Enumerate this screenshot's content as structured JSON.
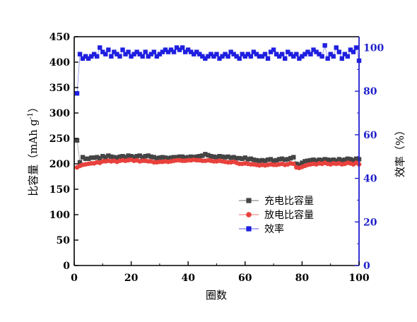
{
  "chart_data": {
    "type": "scatter",
    "xlabel": "圈数",
    "ylabel_left_main": "比容量（mAh g",
    "ylabel_left_sup": "-1",
    "ylabel_left_end": "）",
    "ylabel_right": "效率（%）",
    "xlim": [
      0,
      100
    ],
    "ylim_left": [
      0,
      450
    ],
    "ylim_right": [
      0,
      105
    ],
    "x_ticks": [
      0,
      20,
      40,
      60,
      80,
      100
    ],
    "y_ticks_left": [
      0,
      50,
      100,
      150,
      200,
      250,
      300,
      350,
      400,
      450
    ],
    "y_ticks_right": [
      0,
      20,
      40,
      60,
      80,
      100
    ],
    "right_axis_color": "#1f1fcc",
    "legend_position": "lower-right",
    "series": [
      {
        "name": "充电比容量",
        "axis": "left",
        "color": "#444444",
        "marker": "square",
        "x": [
          1,
          2,
          3,
          4,
          5,
          6,
          7,
          8,
          9,
          10,
          11,
          12,
          13,
          14,
          15,
          16,
          17,
          18,
          19,
          20,
          21,
          22,
          23,
          24,
          25,
          26,
          27,
          28,
          29,
          30,
          31,
          32,
          33,
          34,
          35,
          36,
          37,
          38,
          39,
          40,
          41,
          42,
          43,
          44,
          45,
          46,
          47,
          48,
          49,
          50,
          51,
          52,
          53,
          54,
          55,
          56,
          57,
          58,
          59,
          60,
          61,
          62,
          63,
          64,
          65,
          66,
          67,
          68,
          69,
          70,
          71,
          72,
          73,
          74,
          75,
          76,
          77,
          78,
          79,
          80,
          81,
          82,
          83,
          84,
          85,
          86,
          87,
          88,
          89,
          90,
          91,
          92,
          93,
          94,
          95,
          96,
          97,
          98,
          99,
          100
        ],
        "values": [
          246,
          203,
          213,
          210,
          210,
          212,
          212,
          213,
          211,
          215,
          213,
          216,
          214,
          213,
          212,
          214,
          215,
          213,
          216,
          215,
          213,
          215,
          216,
          213,
          215,
          216,
          214,
          213,
          211,
          212,
          213,
          212,
          211,
          212,
          213,
          213,
          214,
          214,
          212,
          213,
          214,
          213,
          214,
          215,
          216,
          219,
          217,
          215,
          214,
          213,
          215,
          214,
          213,
          214,
          212,
          213,
          211,
          211,
          210,
          212,
          209,
          210,
          208,
          207,
          206,
          207,
          206,
          208,
          209,
          206,
          207,
          209,
          210,
          208,
          209,
          211,
          213,
          200,
          198,
          202,
          205,
          206,
          207,
          208,
          206,
          208,
          207,
          209,
          208,
          207,
          208,
          206,
          209,
          207,
          208,
          210,
          209,
          207,
          210,
          209
        ]
      },
      {
        "name": "放电比容量",
        "axis": "left",
        "color": "#e8413c",
        "marker": "circle",
        "x": [
          1,
          2,
          3,
          4,
          5,
          6,
          7,
          8,
          9,
          10,
          11,
          12,
          13,
          14,
          15,
          16,
          17,
          18,
          19,
          20,
          21,
          22,
          23,
          24,
          25,
          26,
          27,
          28,
          29,
          30,
          31,
          32,
          33,
          34,
          35,
          36,
          37,
          38,
          39,
          40,
          41,
          42,
          43,
          44,
          45,
          46,
          47,
          48,
          49,
          50,
          51,
          52,
          53,
          54,
          55,
          56,
          57,
          58,
          59,
          60,
          61,
          62,
          63,
          64,
          65,
          66,
          67,
          68,
          69,
          70,
          71,
          72,
          73,
          74,
          75,
          76,
          77,
          78,
          79,
          80,
          81,
          82,
          83,
          84,
          85,
          86,
          87,
          88,
          89,
          90,
          91,
          92,
          93,
          94,
          95,
          96,
          97,
          98,
          99,
          100
        ],
        "values": [
          193,
          196,
          198,
          199,
          200,
          201,
          201,
          203,
          202,
          205,
          205,
          206,
          205,
          206,
          204,
          206,
          207,
          206,
          207,
          208,
          206,
          207,
          205,
          206,
          206,
          205,
          205,
          203,
          203,
          204,
          204,
          205,
          204,
          205,
          206,
          207,
          207,
          206,
          206,
          207,
          207,
          208,
          207,
          207,
          206,
          206,
          207,
          206,
          205,
          205,
          206,
          205,
          204,
          203,
          203,
          204,
          202,
          200,
          200,
          201,
          200,
          199,
          199,
          198,
          197,
          198,
          197,
          198,
          199,
          198,
          198,
          199,
          200,
          198,
          199,
          201,
          200,
          193,
          192,
          194,
          196,
          198,
          199,
          200,
          199,
          201,
          200,
          202,
          200,
          199,
          201,
          200,
          201,
          199,
          200,
          202,
          201,
          199,
          202,
          199
        ]
      },
      {
        "name": "效率",
        "axis": "right",
        "color": "#1f1fe0",
        "marker": "square",
        "x": [
          1,
          2,
          3,
          4,
          5,
          6,
          7,
          8,
          9,
          10,
          11,
          12,
          13,
          14,
          15,
          16,
          17,
          18,
          19,
          20,
          21,
          22,
          23,
          24,
          25,
          26,
          27,
          28,
          29,
          30,
          31,
          32,
          33,
          34,
          35,
          36,
          37,
          38,
          39,
          40,
          41,
          42,
          43,
          44,
          45,
          46,
          47,
          48,
          49,
          50,
          51,
          52,
          53,
          54,
          55,
          56,
          57,
          58,
          59,
          60,
          61,
          62,
          63,
          64,
          65,
          66,
          67,
          68,
          69,
          70,
          71,
          72,
          73,
          74,
          75,
          76,
          77,
          78,
          79,
          80,
          81,
          82,
          83,
          84,
          85,
          86,
          87,
          88,
          89,
          90,
          91,
          92,
          93,
          94,
          95,
          96,
          97,
          98,
          99,
          100
        ],
        "values": [
          79,
          97,
          95,
          96,
          95,
          96,
          97,
          96,
          100,
          98,
          97,
          99,
          96,
          98,
          97,
          96,
          99,
          97,
          98,
          96,
          97,
          98,
          97,
          96,
          98,
          96,
          97,
          98,
          96,
          97,
          98,
          99,
          98,
          99,
          98,
          100,
          99,
          100,
          98,
          99,
          98,
          97,
          98,
          97,
          96,
          95,
          96,
          97,
          96,
          97,
          95,
          96,
          97,
          96,
          98,
          97,
          96,
          95,
          97,
          96,
          97,
          96,
          98,
          97,
          96,
          96,
          97,
          95,
          98,
          99,
          97,
          96,
          97,
          95,
          98,
          97,
          96,
          97,
          95,
          96,
          97,
          98,
          97,
          99,
          98,
          97,
          96,
          101,
          95,
          97,
          96,
          100,
          98,
          95,
          97,
          96,
          99,
          98,
          100,
          94
        ]
      }
    ]
  }
}
